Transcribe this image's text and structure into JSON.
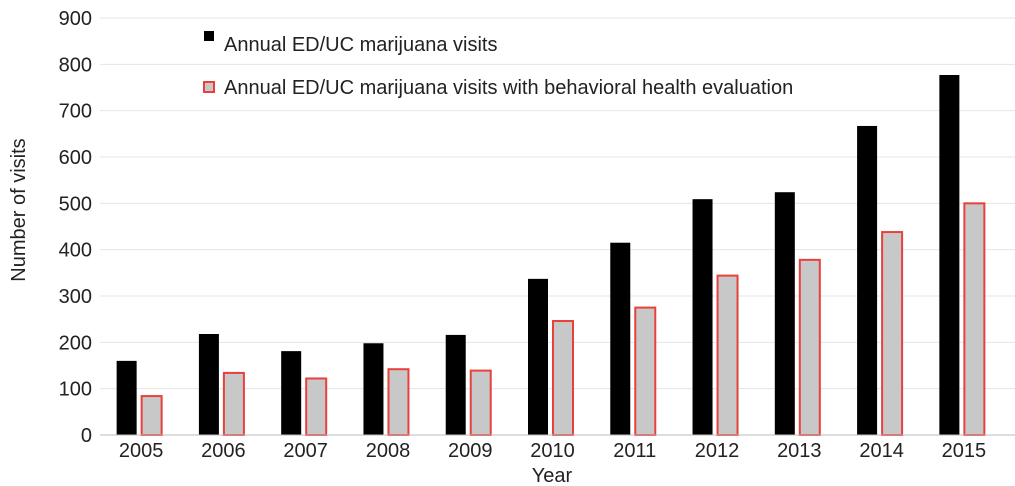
{
  "chart_data": {
    "type": "bar",
    "title": "",
    "xlabel": "Year",
    "ylabel": "Number of visits",
    "categories": [
      "2005",
      "2006",
      "2007",
      "2008",
      "2009",
      "2010",
      "2011",
      "2012",
      "2013",
      "2014",
      "2015"
    ],
    "series": [
      {
        "name": "Annual ED/UC marijuana visits",
        "color": "#000000",
        "values": [
          160,
          218,
          181,
          198,
          216,
          337,
          415,
          509,
          524,
          667,
          777
        ]
      },
      {
        "name": "Annual ED/UC marijuana visits with behavioral health evaluation",
        "color": "#c8c8c8",
        "stroke": "#e8413c",
        "values": [
          84,
          134,
          122,
          142,
          139,
          246,
          275,
          344,
          378,
          438,
          500
        ]
      }
    ],
    "ylim": [
      0,
      900
    ],
    "yticks": [
      0,
      100,
      200,
      300,
      400,
      500,
      600,
      700,
      800,
      900
    ],
    "grid": true,
    "legend_position": "top-left"
  }
}
